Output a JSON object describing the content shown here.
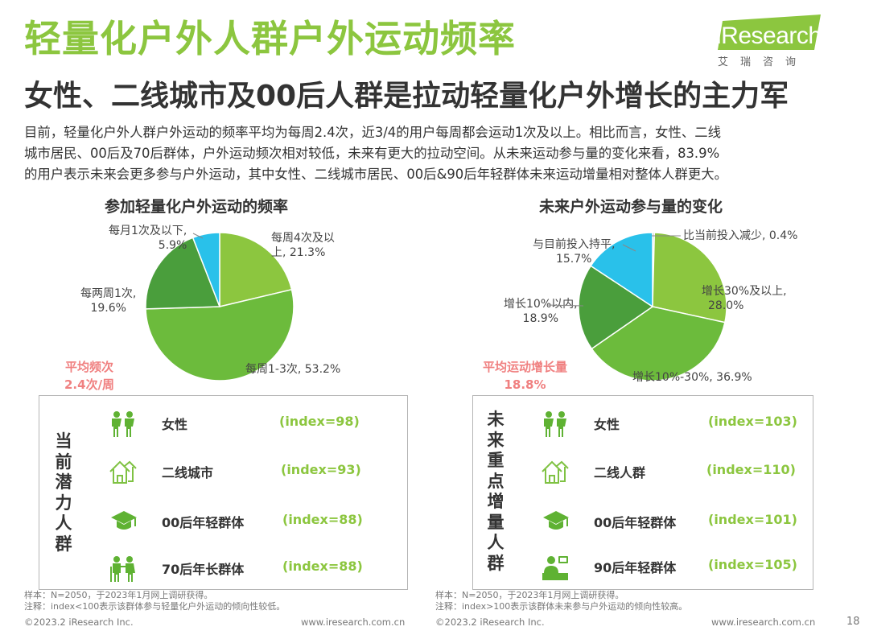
{
  "header": {
    "title": "轻量化户外人群户外运动频率",
    "subtitle": "女性、二线城市及00后人群是拉动轻量化户外增长的主力军"
  },
  "logo": {
    "text_main": "i",
    "text_rest": "Research",
    "cn": "艾瑞咨询"
  },
  "intro": {
    "line1": "目前，轻量化户外人群户外运动的频率平均为每周2.4次，近3/4的用户每周都会运动1次及以上。相比而言，女性、二线",
    "line2": "城市居民、00后及70后群体，户外运动频次相对较低，未来有更大的拉动空间。从未来运动参与量的变化来看，83.9%",
    "line3": "的用户表示未来会更多参与户外运动，其中女性、二线城市居民、00后&90后年轻群体未来运动增量相对整体人群更大。"
  },
  "chart_data": [
    {
      "type": "pie",
      "title": "参加轻量化户外运动的频率",
      "slices": [
        {
          "label": "每周4次及以上",
          "value": 21.3,
          "color": "#8cc63f"
        },
        {
          "label": "每周1-3次",
          "value": 53.2,
          "color": "#6cbb3c"
        },
        {
          "label": "每两周1次",
          "value": 19.6,
          "color": "#4a9e3c"
        },
        {
          "label": "每月1次及以下",
          "value": 5.9,
          "color": "#29c1ea"
        }
      ],
      "slice_texts": [
        {
          "line1": "每周4次及以",
          "line2": "上, 21.3%"
        },
        {
          "line1": "每周1-3次, 53.2%",
          "line2": ""
        },
        {
          "line1": "每两周1次,",
          "line2": "19.6%"
        },
        {
          "line1": "每月1次及以下,",
          "line2": "5.9%"
        }
      ],
      "annotation": {
        "line1": "平均频次",
        "line2": "2.4次/周"
      }
    },
    {
      "type": "pie",
      "title": "未来户外运动参与量的变化",
      "slices": [
        {
          "label": "比当前投入减少",
          "value": 0.4,
          "color": "#b5b5b5"
        },
        {
          "label": "增长30%及以上",
          "value": 28.0,
          "color": "#8cc63f"
        },
        {
          "label": "增长10%-30%",
          "value": 36.9,
          "color": "#6cbb3c"
        },
        {
          "label": "增长10%以内",
          "value": 18.9,
          "color": "#4a9e3c"
        },
        {
          "label": "与目前投入持平",
          "value": 15.7,
          "color": "#29c1ea"
        }
      ],
      "slice_texts": [
        {
          "line1": "比当前投入减少, 0.4%",
          "line2": ""
        },
        {
          "line1": "增长30%及以上,",
          "line2": "28.0%"
        },
        {
          "line1": "增长10%-30%, 36.9%",
          "line2": ""
        },
        {
          "line1": "增长10%以内,",
          "line2": "18.9%"
        },
        {
          "line1": "与目前投入持平,",
          "line2": "15.7%"
        }
      ],
      "annotation": {
        "line1": "平均运动增长量",
        "line2": "18.8%"
      }
    }
  ],
  "panel_left": {
    "title_chars": [
      "当",
      "前",
      "潜",
      "力",
      "人",
      "群"
    ],
    "rows": [
      {
        "icon": "women-icon",
        "label": "女性",
        "index": "(index=98)"
      },
      {
        "icon": "house-icon",
        "label": "二线城市",
        "index": "(index=93)"
      },
      {
        "icon": "graduation-cap-icon",
        "label": "00后年轻群体",
        "index": "(index=88)"
      },
      {
        "icon": "elderly-couple-icon",
        "label": "70后年长群体",
        "index": "(index=88)"
      }
    ]
  },
  "panel_right": {
    "title_chars": [
      "未",
      "来",
      "重",
      "点",
      "增",
      "量",
      "人",
      "群"
    ],
    "rows": [
      {
        "icon": "women-icon",
        "label": "女性",
        "index": "(index=103)"
      },
      {
        "icon": "house-icon",
        "label": "二线人群",
        "index": "(index=110)"
      },
      {
        "icon": "graduation-cap-icon",
        "label": "00后年轻群体",
        "index": "(index=101)"
      },
      {
        "icon": "office-worker-icon",
        "label": "90后年轻群体",
        "index": "(index=105)"
      }
    ]
  },
  "notes": {
    "left_sample": "样本：N=2050，于2023年1月网上调研获得。",
    "left_note": "注释：index<100表示该群体参与轻量化户外运动的倾向性较低。",
    "right_sample": "样本：N=2050，于2023年1月网上调研获得。",
    "right_note": "注释：index>100表示该群体未来参与户外运动的倾向性较高。"
  },
  "footer": {
    "copyright_left": "©2023.2 iResearch Inc.",
    "url_left": "www.iresearch.com.cn",
    "copyright_right": "©2023.2 iResearch Inc.",
    "url_right": "www.iresearch.com.cn",
    "page": "18"
  }
}
